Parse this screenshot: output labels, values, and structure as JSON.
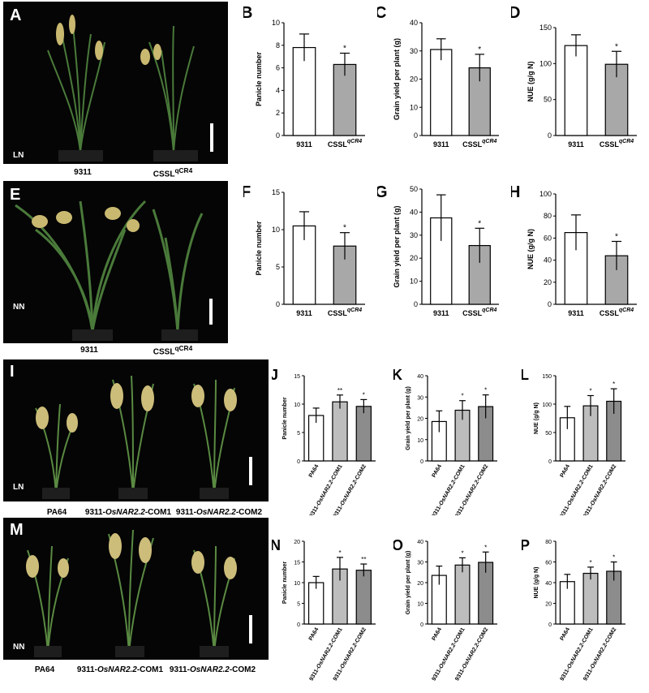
{
  "panels": {
    "A": {
      "letter": "A",
      "condition": "LN",
      "captions": [
        "9311",
        "CSSL<sup>qCR4</sup>"
      ]
    },
    "E": {
      "letter": "E",
      "condition": "NN",
      "captions": [
        "9311",
        "CSSL<sup>qCR4</sup>"
      ]
    },
    "I": {
      "letter": "I",
      "condition": "LN",
      "captions": [
        "PA64",
        "9311-<i>OsNAR2.2</i>-COM1",
        "9311-<i>OsNAR2.2</i>-COM2"
      ]
    },
    "M": {
      "letter": "M",
      "condition": "NN",
      "captions": [
        "PA64",
        "9311-<i>OsNAR2.2</i>-COM1",
        "9311-<i>OsNAR2.2</i>-COM2"
      ]
    }
  },
  "chart_data": [
    {
      "id": "B",
      "letter": "B",
      "type": "bar",
      "ylabel": "Panicle number",
      "ylim": [
        0,
        10
      ],
      "ticks": [
        0,
        2,
        4,
        6,
        8,
        10
      ],
      "categories": [
        "9311",
        "CSSL<tspan font-style='italic' font-size='7' dy='-5'>qCR4</tspan>"
      ],
      "values": [
        7.8,
        6.3
      ],
      "errors": [
        1.2,
        1.0
      ],
      "colors": [
        "#ffffff",
        "#a8a8a8"
      ],
      "marks": [
        "",
        "*"
      ]
    },
    {
      "id": "C",
      "letter": "C",
      "type": "bar",
      "ylabel": "Grain yield per plant (g)",
      "ylim": [
        0,
        40
      ],
      "ticks": [
        0,
        10,
        20,
        30,
        40
      ],
      "categories": [
        "9311",
        "CSSL<tspan font-style='italic' font-size='7' dy='-5'>qCR4</tspan>"
      ],
      "values": [
        30.5,
        24.0
      ],
      "errors": [
        3.8,
        4.8
      ],
      "colors": [
        "#ffffff",
        "#a8a8a8"
      ],
      "marks": [
        "",
        "*"
      ]
    },
    {
      "id": "D",
      "letter": "D",
      "type": "bar",
      "ylabel": "NUE (g/g N)",
      "ylim": [
        0,
        150
      ],
      "ticks": [
        0,
        50,
        100,
        150
      ],
      "categories": [
        "9311",
        "CSSL<tspan font-style='italic' font-size='7' dy='-5'>qCR4</tspan>"
      ],
      "values": [
        125,
        99
      ],
      "errors": [
        15,
        18
      ],
      "colors": [
        "#ffffff",
        "#a8a8a8"
      ],
      "marks": [
        "",
        "*"
      ]
    },
    {
      "id": "F",
      "letter": "F",
      "type": "bar",
      "ylabel": "Panicle number",
      "ylim": [
        0,
        15
      ],
      "ticks": [
        0,
        5,
        10,
        15
      ],
      "categories": [
        "9311",
        "CSSL<tspan font-style='italic' font-size='7' dy='-5'>qCR4</tspan>"
      ],
      "values": [
        10.5,
        7.8
      ],
      "errors": [
        1.9,
        1.8
      ],
      "colors": [
        "#ffffff",
        "#a8a8a8"
      ],
      "marks": [
        "",
        "*"
      ]
    },
    {
      "id": "G",
      "letter": "G",
      "type": "bar",
      "ylabel": "Grain yield per plant (g)",
      "ylim": [
        0,
        50
      ],
      "ticks": [
        0,
        10,
        20,
        30,
        40,
        50
      ],
      "categories": [
        "9311",
        "CSSL<tspan font-style='italic' font-size='7' dy='-5'>qCR4</tspan>"
      ],
      "values": [
        37.5,
        25.5
      ],
      "errors": [
        10,
        7.5
      ],
      "colors": [
        "#ffffff",
        "#a8a8a8"
      ],
      "marks": [
        "",
        "*"
      ]
    },
    {
      "id": "H",
      "letter": "H",
      "type": "bar",
      "ylabel": "NUE (g/g N)",
      "ylim": [
        0,
        100
      ],
      "ticks": [
        0,
        20,
        40,
        60,
        80,
        100
      ],
      "categories": [
        "9311",
        "CSSL<tspan font-style='italic' font-size='7' dy='-5'>qCR4</tspan>"
      ],
      "values": [
        65,
        44
      ],
      "errors": [
        16,
        13
      ],
      "colors": [
        "#ffffff",
        "#a8a8a8"
      ],
      "marks": [
        "",
        "*"
      ]
    },
    {
      "id": "J",
      "letter": "J",
      "type": "bar",
      "ylabel": "Panicle number",
      "ylim": [
        0,
        15
      ],
      "ticks": [
        0,
        5,
        10,
        15
      ],
      "categories": [
        "PA64",
        "9311-<tspan font-style='italic'>OsNAR2.2</tspan>-COM1",
        "9311-<tspan font-style='italic'>OsNAR2.2</tspan>-COM2"
      ],
      "values": [
        8.0,
        10.4,
        9.6
      ],
      "errors": [
        1.3,
        1.2,
        1.2
      ],
      "colors": [
        "#ffffff",
        "#bdbdbd",
        "#8c8c8c"
      ],
      "marks": [
        "",
        "**",
        "*"
      ]
    },
    {
      "id": "K",
      "letter": "K",
      "type": "bar",
      "ylabel": "Grain yield per plant (g)",
      "ylim": [
        0,
        40
      ],
      "ticks": [
        0,
        10,
        20,
        30,
        40
      ],
      "categories": [
        "PA64",
        "9311-<tspan font-style='italic'>OsNAR2.2</tspan>-COM1",
        "9311-<tspan font-style='italic'>OsNAR2.2</tspan>-COM2"
      ],
      "values": [
        18.5,
        23.8,
        25.5
      ],
      "errors": [
        5,
        4.5,
        5.5
      ],
      "colors": [
        "#ffffff",
        "#bdbdbd",
        "#8c8c8c"
      ],
      "marks": [
        "",
        "*",
        "*"
      ]
    },
    {
      "id": "L",
      "letter": "L",
      "type": "bar",
      "ylabel": "NUE (g/g N)",
      "ylim": [
        0,
        150
      ],
      "ticks": [
        0,
        50,
        100,
        150
      ],
      "categories": [
        "PA64",
        "9311-<tspan font-style='italic'>OsNAR2.2</tspan>-COM1",
        "9311-<tspan font-style='italic'>OsNAR2.2</tspan>-COM2"
      ],
      "values": [
        76,
        97,
        105
      ],
      "errors": [
        20,
        18,
        22
      ],
      "colors": [
        "#ffffff",
        "#bdbdbd",
        "#8c8c8c"
      ],
      "marks": [
        "",
        "*",
        "*"
      ]
    },
    {
      "id": "N",
      "letter": "N",
      "type": "bar",
      "ylabel": "Panicle number",
      "ylim": [
        0,
        20
      ],
      "ticks": [
        0,
        5,
        10,
        15,
        20
      ],
      "categories": [
        "PA64",
        "9311-<tspan font-style='italic'>OsNAR2.2</tspan>-COM1",
        "9311-<tspan font-style='italic'>OsNAR2.2</tspan>-COM2"
      ],
      "values": [
        10.0,
        13.3,
        13.0
      ],
      "errors": [
        1.5,
        2.8,
        1.5
      ],
      "colors": [
        "#ffffff",
        "#bdbdbd",
        "#8c8c8c"
      ],
      "marks": [
        "",
        "*",
        "**"
      ]
    },
    {
      "id": "O",
      "letter": "O",
      "type": "bar",
      "ylabel": "Grain yield per plant (g)",
      "ylim": [
        0,
        40
      ],
      "ticks": [
        0,
        10,
        20,
        30,
        40
      ],
      "categories": [
        "PA64",
        "9311-<tspan font-style='italic'>OsNAR2.2</tspan>-COM1",
        "9311-<tspan font-style='italic'>OsNAR2.2</tspan>-COM2"
      ],
      "values": [
        23.5,
        28.5,
        29.8
      ],
      "errors": [
        4.5,
        3.5,
        5
      ],
      "colors": [
        "#ffffff",
        "#bdbdbd",
        "#8c8c8c"
      ],
      "marks": [
        "",
        "*",
        "*"
      ]
    },
    {
      "id": "P",
      "letter": "P",
      "type": "bar",
      "ylabel": "NUE (g/g N)",
      "ylim": [
        0,
        80
      ],
      "ticks": [
        0,
        20,
        40,
        60,
        80
      ],
      "categories": [
        "PA64",
        "9311-<tspan font-style='italic'>OsNAR2.2</tspan>-COM1",
        "9311-<tspan font-style='italic'>OsNAR2.2</tspan>-COM2"
      ],
      "values": [
        41,
        49,
        51
      ],
      "errors": [
        7,
        6,
        9
      ],
      "colors": [
        "#ffffff",
        "#bdbdbd",
        "#8c8c8c"
      ],
      "marks": [
        "",
        "*",
        "*"
      ]
    }
  ]
}
